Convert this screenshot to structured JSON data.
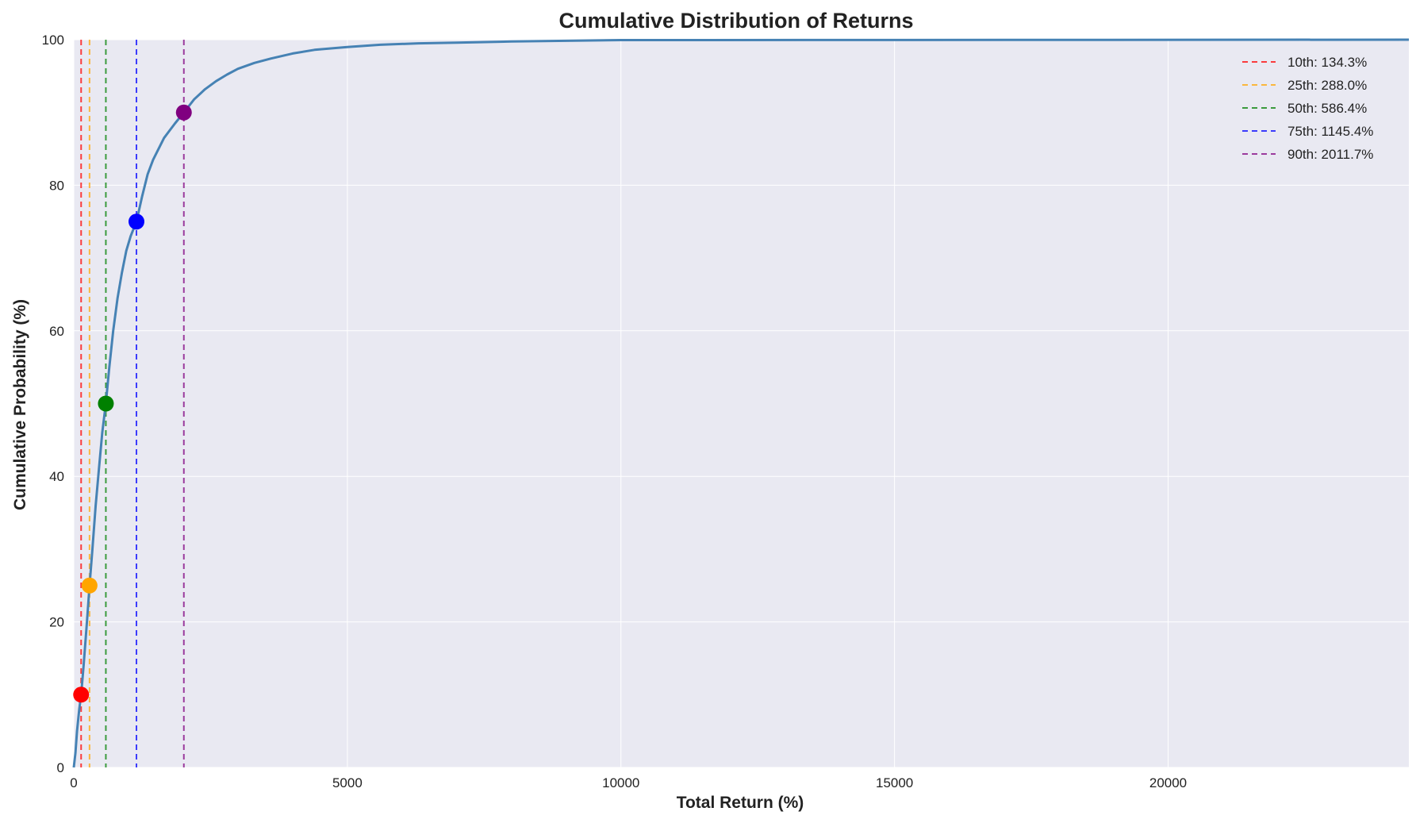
{
  "chart_data": {
    "type": "line",
    "title": "Cumulative Distribution of Returns",
    "xlabel": "Total Return (%)",
    "ylabel": "Cumulative Probability (%)",
    "xlim": [
      0,
      24400
    ],
    "ylim": [
      0,
      100
    ],
    "x_ticks": [
      0,
      5000,
      10000,
      15000,
      20000
    ],
    "y_ticks": [
      0,
      20,
      40,
      60,
      80,
      100
    ],
    "grid": true,
    "legend_position": "top-right",
    "series": [
      {
        "color": "#4682b4",
        "x": [
          0,
          30,
          60,
          100,
          134.3,
          180,
          240,
          288,
          340,
          400,
          460,
          520,
          586.4,
          650,
          720,
          800,
          880,
          960,
          1040,
          1145.4,
          1250,
          1350,
          1450,
          1550,
          1650,
          1750,
          1850,
          2011.7,
          2200,
          2400,
          2600,
          2800,
          3000,
          3300,
          3600,
          4000,
          4400,
          5000,
          5600,
          6300,
          7000,
          8000,
          9000,
          10000,
          24400
        ],
        "y": [
          0,
          2,
          5,
          8,
          10,
          14,
          20,
          25,
          30,
          36,
          41,
          46,
          50,
          55,
          60,
          64.5,
          68,
          71,
          73,
          75,
          78.5,
          81.5,
          83.5,
          85,
          86.5,
          87.5,
          88.5,
          90,
          91.8,
          93.2,
          94.3,
          95.2,
          96,
          96.8,
          97.4,
          98.1,
          98.6,
          99,
          99.3,
          99.5,
          99.6,
          99.75,
          99.85,
          99.95,
          100
        ]
      }
    ],
    "percentiles": [
      {
        "x": 134.3,
        "y": 10,
        "color": "#ff0000",
        "label": "10th: 134.3%"
      },
      {
        "x": 288.0,
        "y": 25,
        "color": "#ffa500",
        "label": "25th: 288.0%"
      },
      {
        "x": 586.4,
        "y": 50,
        "color": "#008000",
        "label": "50th: 586.4%"
      },
      {
        "x": 1145.4,
        "y": 75,
        "color": "#0000ff",
        "label": "75th: 1145.4%"
      },
      {
        "x": 2011.7,
        "y": 90,
        "color": "#800080",
        "label": "90th: 2011.7%"
      }
    ],
    "colors": {
      "plot_background": "#e9e9f2",
      "grid": "#ffffff"
    }
  }
}
